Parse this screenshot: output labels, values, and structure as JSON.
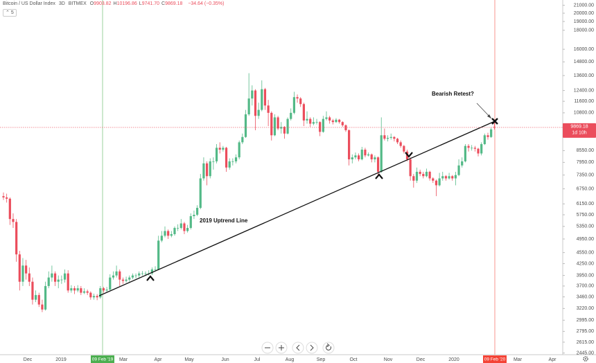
{
  "chart_data": {
    "type": "candlestick",
    "title": "Bitcoin / US Dollar Index",
    "interval": "3D",
    "exchange": "BITMEX",
    "ohlc_legend": [
      {
        "key": "O",
        "value": "9903.82"
      },
      {
        "key": "H",
        "value": "10196.86"
      },
      {
        "key": "L",
        "value": "9741.70"
      },
      {
        "key": "C",
        "value": "9869.18"
      }
    ],
    "change": "−34.64 (−0.35%)",
    "indicator_count": "5",
    "open": [
      6450,
      6400,
      6350,
      5600,
      5500,
      4500,
      3800,
      4200,
      4000,
      3800,
      3400,
      3500,
      3300,
      3200,
      3700,
      3900,
      4000,
      3800,
      3850,
      3850,
      4000,
      3600,
      3650,
      3600,
      3650,
      3550,
      3580,
      3550,
      3450,
      3480,
      3450,
      3650,
      3600,
      3620,
      3900,
      3950,
      4050,
      3850,
      3820,
      3850,
      3900,
      3950,
      3950,
      4000,
      4000,
      4000,
      4000,
      4100,
      4100,
      4900,
      5050,
      5200,
      5050,
      5100,
      5300,
      5300,
      5450,
      5200,
      5300,
      5700,
      5750,
      6000,
      7200,
      7900,
      7300,
      8000,
      8000,
      8700,
      8600,
      8700,
      7700,
      8000,
      8000,
      8200,
      9000,
      9300,
      10700,
      11800,
      12400,
      10600,
      11000,
      12500,
      11300,
      10800,
      9400,
      10500,
      9800,
      9900,
      9500,
      10400,
      10800,
      11900,
      11800,
      11400,
      10300,
      10400,
      10100,
      10200,
      10200,
      9600,
      10400,
      10500,
      10300,
      10200,
      10350,
      10200,
      10000,
      9700,
      8100,
      8200,
      8300,
      8100,
      8600,
      8300,
      8350,
      8100,
      8200,
      7500,
      9400,
      9200,
      9250,
      9300,
      9200,
      9000,
      8800,
      8500,
      8100,
      7300,
      7100,
      7500,
      7400,
      7300,
      7500,
      7200,
      7100,
      6900,
      7200,
      7300,
      7200,
      7300,
      7200,
      7350,
      7800,
      8000,
      8800,
      8700,
      8700,
      8650,
      8400,
      8900,
      9400,
      9300,
      9903.82
    ],
    "high": [
      6600,
      6550,
      6400,
      5800,
      5600,
      4600,
      4400,
      4350,
      4150,
      3900,
      3600,
      3550,
      3400,
      3800,
      4050,
      4200,
      4050,
      3950,
      3950,
      4100,
      4080,
      3720,
      3700,
      3720,
      3700,
      3650,
      3620,
      3580,
      3530,
      3520,
      3700,
      3680,
      3680,
      3980,
      4050,
      4200,
      4100,
      3900,
      3920,
      3950,
      4000,
      4000,
      4050,
      4060,
      4050,
      4080,
      4150,
      4180,
      5050,
      5200,
      5350,
      5250,
      5200,
      5350,
      5420,
      5600,
      5500,
      5400,
      5800,
      5900,
      6100,
      7400,
      8200,
      8000,
      8150,
      8200,
      8900,
      9000,
      8800,
      8750,
      8150,
      8150,
      8350,
      9100,
      9500,
      11000,
      13800,
      12800,
      12500,
      11500,
      13200,
      12600,
      11700,
      10900,
      10700,
      10600,
      10200,
      9950,
      10500,
      11100,
      12300,
      12100,
      11900,
      11500,
      10900,
      10500,
      10500,
      10400,
      10250,
      10600,
      10900,
      10600,
      10400,
      10450,
      10400,
      10250,
      10050,
      9750,
      8350,
      8450,
      8400,
      8750,
      8700,
      8450,
      8400,
      8300,
      8250,
      10500,
      9800,
      9400,
      9500,
      9350,
      9250,
      9100,
      8850,
      8600,
      8200,
      7400,
      7700,
      7600,
      7500,
      7650,
      7550,
      7250,
      7150,
      7450,
      7500,
      7350,
      7450,
      7350,
      7500,
      8100,
      8200,
      8900,
      8900,
      8850,
      8800,
      8700,
      9000,
      9500,
      9550,
      9850,
      10196.86
    ],
    "low": [
      6300,
      6200,
      5400,
      5300,
      4300,
      3600,
      3700,
      3850,
      3700,
      3300,
      3350,
      3250,
      3150,
      3180,
      3650,
      3800,
      3700,
      3650,
      3750,
      3780,
      3550,
      3550,
      3520,
      3560,
      3500,
      3520,
      3500,
      3400,
      3400,
      3390,
      3420,
      3550,
      3570,
      3600,
      3850,
      3900,
      3700,
      3750,
      3780,
      3800,
      3860,
      3880,
      3900,
      3950,
      3940,
      3950,
      3960,
      4050,
      4080,
      4850,
      5000,
      4950,
      5000,
      5050,
      5200,
      5250,
      5100,
      5150,
      5250,
      5600,
      5700,
      5950,
      7100,
      6900,
      7200,
      7600,
      7900,
      8400,
      8500,
      7500,
      7600,
      7800,
      7900,
      8100,
      8900,
      9250,
      10600,
      11300,
      9700,
      10400,
      10900,
      11000,
      9950,
      9100,
      9350,
      9700,
      9500,
      9200,
      9450,
      10300,
      10700,
      11500,
      11200,
      9950,
      10100,
      9900,
      10000,
      10050,
      9350,
      9550,
      10300,
      10100,
      10050,
      10150,
      10100,
      9900,
      9600,
      7800,
      7900,
      8100,
      8000,
      8050,
      8200,
      8250,
      7950,
      7950,
      7350,
      7450,
      9100,
      9050,
      9150,
      9050,
      8900,
      8700,
      8400,
      8000,
      7100,
      6800,
      7000,
      7300,
      7200,
      7250,
      7100,
      7000,
      6450,
      6850,
      7100,
      7100,
      7150,
      7100,
      6900,
      7300,
      7700,
      7950,
      8500,
      8550,
      8500,
      8250,
      8300,
      8850,
      9150,
      9250,
      9741.7
    ],
    "close": [
      6400,
      6350,
      5600,
      5500,
      4500,
      3800,
      4200,
      4000,
      3800,
      3400,
      3500,
      3300,
      3200,
      3700,
      3900,
      4000,
      3800,
      3850,
      3850,
      4000,
      3600,
      3650,
      3600,
      3650,
      3550,
      3580,
      3550,
      3450,
      3480,
      3450,
      3650,
      3600,
      3620,
      3900,
      3950,
      4050,
      3850,
      3820,
      3850,
      3900,
      3950,
      3950,
      4000,
      4000,
      4000,
      4000,
      4100,
      4100,
      4900,
      5050,
      5200,
      5050,
      5100,
      5300,
      5300,
      5450,
      5200,
      5300,
      5700,
      5750,
      6000,
      7200,
      7900,
      7300,
      8000,
      8000,
      8700,
      8600,
      8700,
      7700,
      8000,
      8000,
      8200,
      9000,
      9300,
      10700,
      11800,
      12400,
      10600,
      11000,
      12500,
      11300,
      10800,
      9400,
      10500,
      9800,
      9900,
      9500,
      10400,
      10800,
      11900,
      11800,
      11400,
      10300,
      10400,
      10100,
      10200,
      10200,
      9600,
      10400,
      10500,
      10300,
      10200,
      10350,
      10200,
      10000,
      9700,
      8100,
      8200,
      8300,
      8100,
      8600,
      8300,
      8350,
      8100,
      8200,
      7500,
      9400,
      9200,
      9250,
      9300,
      9200,
      9000,
      8800,
      8500,
      8100,
      7300,
      7100,
      7500,
      7400,
      7300,
      7500,
      7200,
      7100,
      6900,
      7200,
      7300,
      7200,
      7300,
      7200,
      7350,
      7800,
      8000,
      8800,
      8700,
      8700,
      8650,
      8400,
      8900,
      9400,
      9300,
      9750,
      9869.18
    ],
    "up_color": "#53b987",
    "down_color": "#eb4d5c",
    "log_scale": true,
    "ylim": [
      2420,
      21700
    ],
    "yticks": [
      {
        "value": 21000,
        "label": "21000.00"
      },
      {
        "value": 20000,
        "label": "20000.00"
      },
      {
        "value": 19000,
        "label": "19000.00"
      },
      {
        "value": 18000,
        "label": "18000.00"
      },
      {
        "value": 16000,
        "label": "16000.00"
      },
      {
        "value": 14800,
        "label": "14800.00"
      },
      {
        "value": 13600,
        "label": "13600.00"
      },
      {
        "value": 12400,
        "label": "12400.00"
      },
      {
        "value": 11600,
        "label": "11600.00"
      },
      {
        "value": 10800,
        "label": "10800.00"
      },
      {
        "value": 8550,
        "label": "8550.00"
      },
      {
        "value": 7950,
        "label": "7950.00"
      },
      {
        "value": 7350,
        "label": "7350.00"
      },
      {
        "value": 6750,
        "label": "6750.00"
      },
      {
        "value": 6150,
        "label": "6150.00"
      },
      {
        "value": 5750,
        "label": "5750.00"
      },
      {
        "value": 5350,
        "label": "5350.00"
      },
      {
        "value": 4950,
        "label": "4950.00"
      },
      {
        "value": 4550,
        "label": "4550.00"
      },
      {
        "value": 4250,
        "label": "4250.00"
      },
      {
        "value": 3950,
        "label": "3950.00"
      },
      {
        "value": 3700,
        "label": "3700.00"
      },
      {
        "value": 3460,
        "label": "3460.00"
      },
      {
        "value": 3220,
        "label": "3220.00"
      },
      {
        "value": 2995,
        "label": "2995.00"
      },
      {
        "value": 2795,
        "label": "2795.00"
      },
      {
        "value": 2615,
        "label": "2615.00"
      },
      {
        "value": 2445,
        "label": "2445.00"
      }
    ],
    "last_price": 9869.18,
    "countdown": "1d 10h",
    "x_labels": [
      "Dec",
      "2019",
      "Mar",
      "Apr",
      "May",
      "Jun",
      "Jul",
      "Aug",
      "Sep",
      "Oct",
      "Nov",
      "Dec",
      "2020",
      "Mar",
      "Apr"
    ],
    "markers": [
      {
        "label": "09 Feb '19",
        "color": "#4caf50"
      },
      {
        "label": "09 Feb '20",
        "color": "#f44336"
      }
    ],
    "annotations": [
      "2019 Uptrend Line",
      "Bearish Retest?"
    ]
  }
}
